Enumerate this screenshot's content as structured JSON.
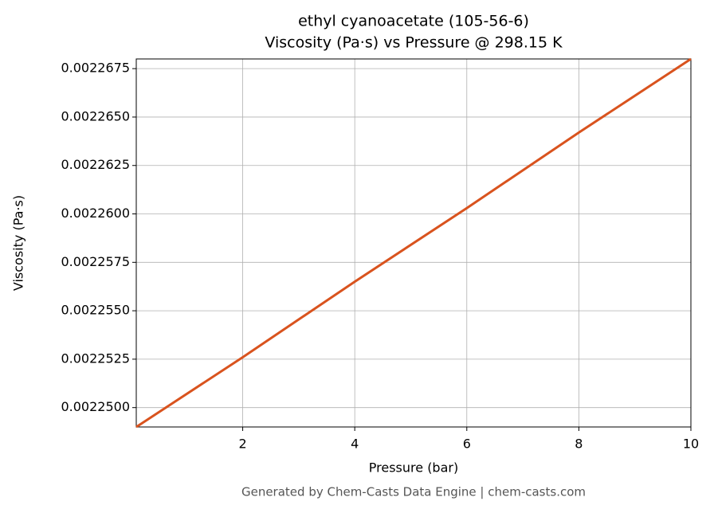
{
  "chart_data": {
    "type": "line",
    "title": "ethyl cyanoacetate (105-56-6)",
    "subtitle": "Viscosity (Pa·s) vs Pressure @ 298.15 K",
    "x_label": "Pressure (bar)",
    "y_label": "Viscosity (Pa·s)",
    "footer": "Generated by Chem-Casts Data Engine | chem-casts.com",
    "x": [
      0.1,
      2,
      4,
      6,
      8,
      10
    ],
    "series": [
      {
        "name": "Viscosity",
        "color": "#d9531e",
        "values": [
          0.002249,
          0.0022526,
          0.0022565,
          0.0022603,
          0.0022642,
          0.002268
        ]
      }
    ],
    "xlim": [
      0.1,
      10
    ],
    "ylim": [
      0.002249,
      0.002268
    ],
    "xticks": [
      2,
      4,
      6,
      8,
      10
    ],
    "yticks": [
      {
        "value": 0.00225,
        "label": "0.0022500"
      },
      {
        "value": 0.0022525,
        "label": "0.0022525"
      },
      {
        "value": 0.002255,
        "label": "0.0022550"
      },
      {
        "value": 0.0022575,
        "label": "0.0022575"
      },
      {
        "value": 0.00226,
        "label": "0.0022600"
      },
      {
        "value": 0.0022625,
        "label": "0.0022625"
      },
      {
        "value": 0.002265,
        "label": "0.0022650"
      },
      {
        "value": 0.0022675,
        "label": "0.0022675"
      }
    ],
    "grid": true
  }
}
